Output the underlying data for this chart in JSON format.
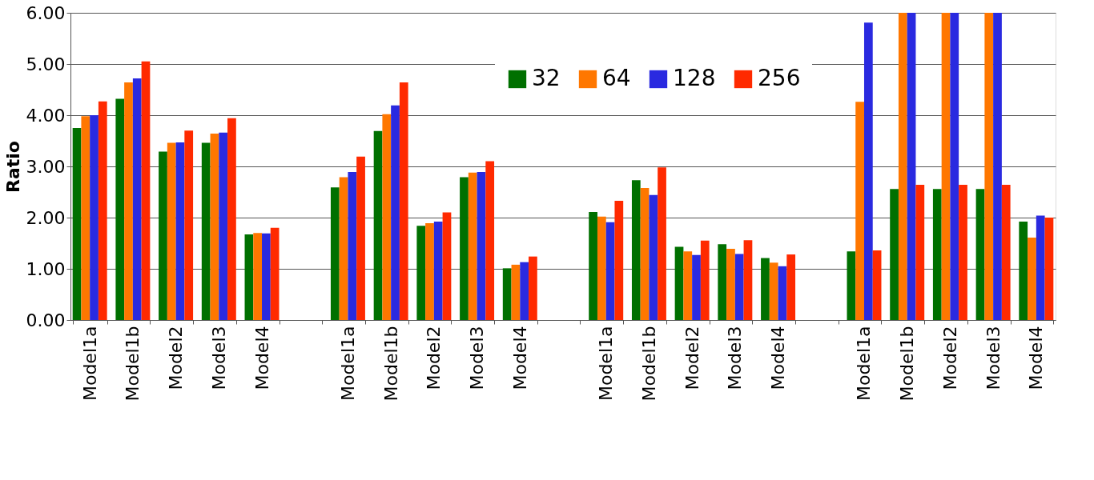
{
  "chart_data": {
    "type": "bar",
    "ylabel": "Ratio",
    "categories": [
      "Model1a",
      "Model1b",
      "Model2",
      "Model3",
      "Model4",
      null,
      "Model1a",
      "Model1b",
      "Model2",
      "Model3",
      "Model4",
      null,
      "Model1a",
      "Model1b",
      "Model2",
      "Model3",
      "Model4",
      null,
      "Model1a",
      "Model1b",
      "Model2",
      "Model3",
      "Model4"
    ],
    "series": [
      {
        "name": "32",
        "color": "#007000",
        "values": [
          3.75,
          4.32,
          3.29,
          3.46,
          1.67,
          null,
          2.59,
          3.69,
          1.84,
          2.79,
          1.01,
          null,
          2.11,
          2.73,
          1.43,
          1.48,
          1.21,
          null,
          1.34,
          2.56,
          2.56,
          2.56,
          1.92
        ]
      },
      {
        "name": "64",
        "color": "#ff7700",
        "values": [
          3.98,
          4.64,
          3.46,
          3.64,
          1.7,
          null,
          2.79,
          4.02,
          1.89,
          2.88,
          1.08,
          null,
          2.02,
          2.58,
          1.34,
          1.39,
          1.12,
          null,
          4.26,
          6.0,
          6.0,
          6.0,
          1.61
        ]
      },
      {
        "name": "128",
        "color": "#2a2ae0",
        "values": [
          4.0,
          4.72,
          3.47,
          3.66,
          1.69,
          null,
          2.89,
          4.19,
          1.92,
          2.89,
          1.13,
          null,
          1.91,
          2.44,
          1.27,
          1.29,
          1.05,
          null,
          5.81,
          6.0,
          6.0,
          6.0,
          2.04
        ]
      },
      {
        "name": "256",
        "color": "#ff2a00",
        "values": [
          4.27,
          5.05,
          3.7,
          3.94,
          1.8,
          null,
          3.19,
          4.64,
          2.1,
          3.1,
          1.24,
          null,
          2.33,
          2.98,
          1.55,
          1.56,
          1.28,
          null,
          1.36,
          2.64,
          2.64,
          2.64,
          2.0
        ]
      }
    ],
    "ylim": [
      0,
      6
    ],
    "yticks": [
      {
        "value": 0,
        "label": "0.00"
      },
      {
        "value": 1,
        "label": "1.00"
      },
      {
        "value": 2,
        "label": "2.00"
      },
      {
        "value": 3,
        "label": "3.00"
      },
      {
        "value": 4,
        "label": "4.00"
      },
      {
        "value": 5,
        "label": "5.00"
      },
      {
        "value": 6,
        "label": "6.00"
      }
    ],
    "grid": "y",
    "legend": "top"
  }
}
